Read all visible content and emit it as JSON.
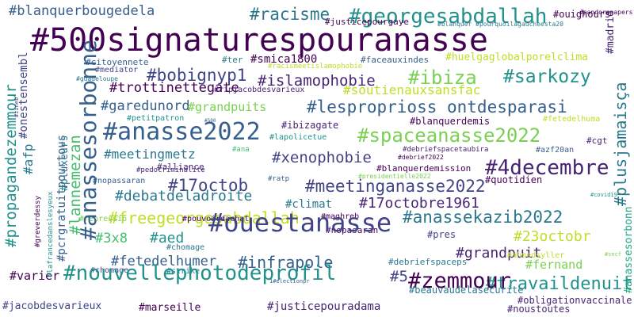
{
  "words": {
    "w1": "#500signaturespouranasse",
    "w2": "#blanquerbougedela",
    "w3": "#racisme",
    "w4": "#georgesabdallah",
    "w5": "#ifelnkouaut",
    "w6": "#pandorapapers",
    "w7": "#justicepourgaye",
    "w8": "#blanquer #pourquoilagaucheesta20",
    "w9": "#ouighours",
    "w10": "#citoyennete",
    "w11": "#ter",
    "w12": "#smica1800",
    "w13": "#faceauxindes",
    "w14": "#huelgaglobalporelclima",
    "w15": "#racismeetislamophobie",
    "w16": "#mediator",
    "w17": "#guadeloupe",
    "w18": "#bobignyp1",
    "w19": "#islamophobie",
    "w20": "#ibiza",
    "w21": "#sarkozy",
    "w22": "#trottinettegate",
    "w23": "#soutienauxsansfac",
    "w24": "#ripjacobdesvarieux",
    "w25": "#garedunord",
    "w26": "#grandpuits",
    "w27": "#lesproprioss ontdesparasi",
    "w28": "#petitpatron",
    "w29": "#500",
    "w30": "#blanquerdemis",
    "w31": "#fetedelhuma",
    "w32": "#anasse2022",
    "w33": "#ibizagate",
    "w34": "#lapolicetue",
    "w35": "#spaceanasse2022",
    "w36": "#cgt",
    "w37": "#meetingmetz",
    "w38": "#ana",
    "w39": "#debriefspacetaubira",
    "w40": "#azf20an",
    "w41": "#debrief2022",
    "w42": "#xenophobie",
    "w43": "#alliance",
    "w44": "#pedocriminalite",
    "w45": "#blanquerdemission",
    "w46": "#presidentielle2022",
    "w47": "#4decembre",
    "w48": "#nopassaran",
    "w49": "#quotidien",
    "w50": "#17octob",
    "w51": "#ratp",
    "w52": "#meetinganasse2022",
    "w53": "#debatdeladroite",
    "w54": "#covid19",
    "w55": "#17octobre1961",
    "w56": "#climat",
    "w57": "#anassekazib2022",
    "w58": "#freegeorgesabdallah",
    "w59": "#maghreb",
    "w60": "#repressio",
    "w61": "#pouvoirdachat",
    "w62": "#nopasaran",
    "w63": "#ouestanasse",
    "w64": "#pres",
    "w65": "#23octobr",
    "w66": "#3x8",
    "w67": "#aed",
    "w68": "#grandpuit",
    "w69": "#ahmedsyller",
    "w70": "#sncf",
    "w71": "#fetedelhumer",
    "w72": "#infrapole",
    "w73": "#chomage",
    "w74": "#fernand",
    "w75": "#strike",
    "w76": "#debriefspaceps",
    "w77": "#5",
    "w78": "#travaildenuit",
    "w79": "#varier",
    "w80": "#nouvellephotodeprofil",
    "w81": "1#electionpr",
    "w82": "#beauvaudelasecurite",
    "w83": "#noustoutes",
    "w84": "#zemmour",
    "w85": "#obligationvaccinale",
    "w86": "#jacobdesvarieux",
    "w87": "#marseille",
    "w88": "#justicepouradama",
    "w89": "#propagandezemmour",
    "w90": "#afp",
    "w91": "#onestensembl",
    "w92": "#zineb",
    "w93": "#pcrgratuitpourtous",
    "w94": "#lannemezan",
    "w95": "#anassesorbonne",
    "w96": "#greverdessy",
    "w97": "#lafrancedanslesyeux",
    "w98": "#pluxeurs",
    "w99": "#madrid",
    "w100": "#plusjamaisça",
    "w101": "#anassesorbonn",
    "w102": "#retraites"
  }
}
